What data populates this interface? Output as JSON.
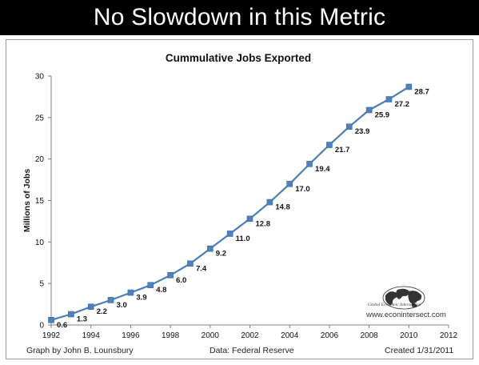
{
  "banner": {
    "title": "No Slowdown in this Metric"
  },
  "footer": {
    "credit": "Graph by John B. Lounsbury",
    "source": "Data:  Federal Reserve",
    "created": "Created 1/31/2011"
  },
  "logo": {
    "caption": "Global Economic Intersection",
    "url": "www.econintersect.com"
  },
  "chart_data": {
    "type": "line",
    "title": "Cummulative Jobs Exported",
    "xlabel": "",
    "ylabel": "Millions of Jobs",
    "xlim": [
      1992,
      2012
    ],
    "ylim": [
      0,
      30
    ],
    "xticks": [
      1992,
      1994,
      1996,
      1998,
      2000,
      2002,
      2004,
      2006,
      2008,
      2010,
      2012
    ],
    "yticks": [
      0,
      5,
      10,
      15,
      20,
      25,
      30
    ],
    "grid": false,
    "legend": "none",
    "series": [
      {
        "color": "#4a7ebb",
        "marker_color": "#4f81bd",
        "x": [
          1992,
          1993,
          1994,
          1995,
          1996,
          1997,
          1998,
          1999,
          2000,
          2001,
          2002,
          2003,
          2004,
          2005,
          2006,
          2007,
          2008,
          2009,
          2010
        ],
        "values": [
          0.6,
          1.3,
          2.2,
          3.0,
          3.9,
          4.8,
          6.0,
          7.4,
          9.2,
          11.0,
          12.8,
          14.8,
          17.0,
          19.4,
          21.7,
          23.9,
          25.9,
          27.2,
          28.7
        ],
        "labels": [
          "0.6",
          "1.3",
          "2.2",
          "3.0",
          "3.9",
          "4.8",
          "6.0",
          "7.4",
          "9.2",
          "11.0",
          "12.8",
          "14.8",
          "17.0",
          "19.4",
          "21.7",
          "23.9",
          "25.9",
          "27.2",
          "28.7"
        ]
      }
    ]
  }
}
